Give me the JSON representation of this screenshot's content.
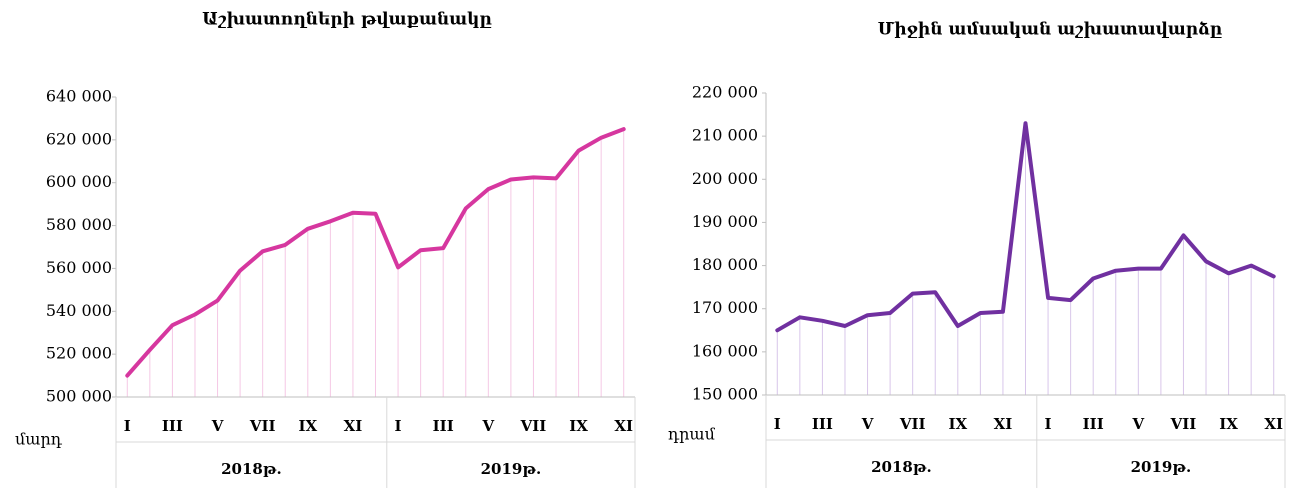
{
  "chart_data": [
    {
      "type": "line",
      "title": "Աշխատողների թվաքանակը",
      "y_label": "մարդ",
      "categories": [
        "I",
        null,
        "III",
        null,
        "V",
        null,
        "VII",
        null,
        "IX",
        null,
        "XI",
        null,
        "I",
        null,
        "III",
        null,
        "V",
        null,
        "VII",
        null,
        "IX",
        null,
        "XI"
      ],
      "groups": [
        "2018թ.",
        "2019թ."
      ],
      "values": [
        510000,
        522000,
        533500,
        538500,
        545000,
        559000,
        568000,
        571000,
        578500,
        582000,
        586000,
        585500,
        560500,
        568500,
        569500,
        588000,
        597000,
        601500,
        602500,
        602000,
        615000,
        621000,
        625000
      ],
      "color": "#d6379f",
      "drop_color": "#f5c8e5",
      "ylim": [
        500000,
        640000
      ],
      "yticks": [
        {
          "value": 500000,
          "label": "500 000"
        },
        {
          "value": 520000,
          "label": "520 000"
        },
        {
          "value": 540000,
          "label": "540 000"
        },
        {
          "value": 560000,
          "label": "560 000"
        },
        {
          "value": 580000,
          "label": "580 000"
        },
        {
          "value": 600000,
          "label": "600 000"
        },
        {
          "value": 620000,
          "label": "620 000"
        },
        {
          "value": 640000,
          "label": "640 000"
        }
      ]
    },
    {
      "type": "line",
      "title": "Միջին ամսական աշխատավարձը",
      "y_label": "դրամ",
      "categories": [
        "I",
        null,
        "III",
        null,
        "V",
        null,
        "VII",
        null,
        "IX",
        null,
        "XI",
        null,
        "I",
        null,
        "III",
        null,
        "V",
        null,
        "VII",
        null,
        "IX",
        null,
        "XI"
      ],
      "groups": [
        "2018թ.",
        "2019թ."
      ],
      "values": [
        165000,
        168000,
        167200,
        166000,
        168500,
        169000,
        173500,
        173800,
        166000,
        169000,
        169300,
        213000,
        172500,
        172000,
        177000,
        178800,
        179300,
        179300,
        187000,
        181000,
        178200,
        180000,
        177500
      ],
      "color": "#7030a0",
      "drop_color": "#d8c6ea",
      "ylim": [
        150000,
        220000
      ],
      "yticks": [
        {
          "value": 150000,
          "label": "150 000"
        },
        {
          "value": 160000,
          "label": "160 000"
        },
        {
          "value": 170000,
          "label": "170 000"
        },
        {
          "value": 180000,
          "label": "180 000"
        },
        {
          "value": 190000,
          "label": "190 000"
        },
        {
          "value": 200000,
          "label": "200 000"
        },
        {
          "value": 210000,
          "label": "210 000"
        },
        {
          "value": 220000,
          "label": "220 000"
        }
      ]
    }
  ]
}
